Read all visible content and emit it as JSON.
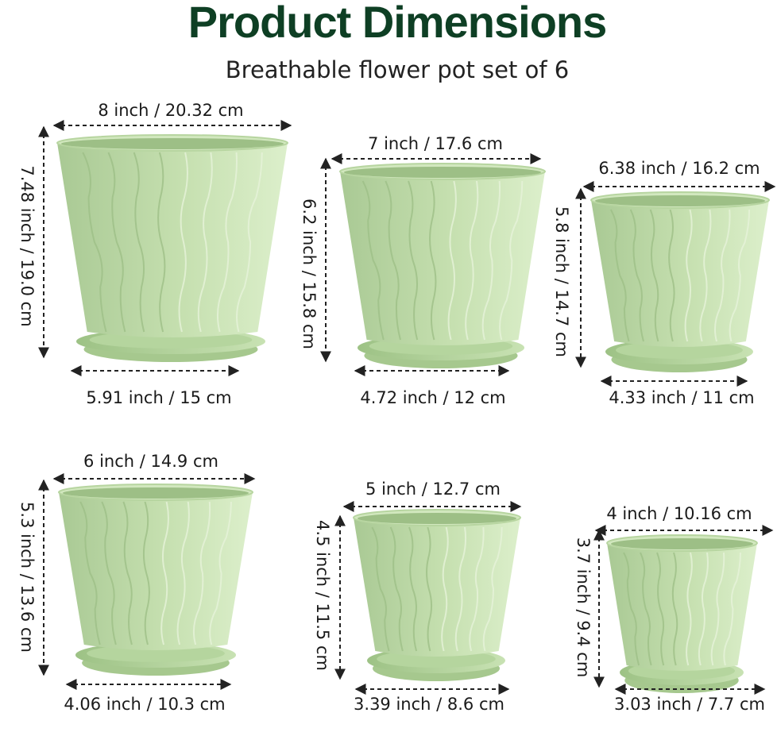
{
  "header": {
    "title": "Product Dimensions",
    "subtitle": "Breathable flower pot set of 6"
  },
  "pots": [
    {
      "top": "8 inch / 20.32 cm",
      "height": "7.48 inch / 19.0 cm",
      "bottom": "5.91 inch / 15 cm"
    },
    {
      "top": "7 inch / 17.6 cm",
      "height": "6.2 inch / 15.8 cm",
      "bottom": "4.72 inch / 12 cm"
    },
    {
      "top": "6.38 inch / 16.2 cm",
      "height": "5.8 inch / 14.7 cm",
      "bottom": "4.33 inch / 11 cm"
    },
    {
      "top": "6 inch / 14.9 cm",
      "height": "5.3 inch / 13.6 cm",
      "bottom": "4.06 inch / 10.3 cm"
    },
    {
      "top": "5 inch / 12.7 cm",
      "height": "4.5 inch / 11.5 cm",
      "bottom": "3.39 inch / 8.6 cm"
    },
    {
      "top": "4 inch / 10.16 cm",
      "height": "3.7 inch / 9.4 cm",
      "bottom": "3.03 inch / 7.7 cm"
    }
  ]
}
